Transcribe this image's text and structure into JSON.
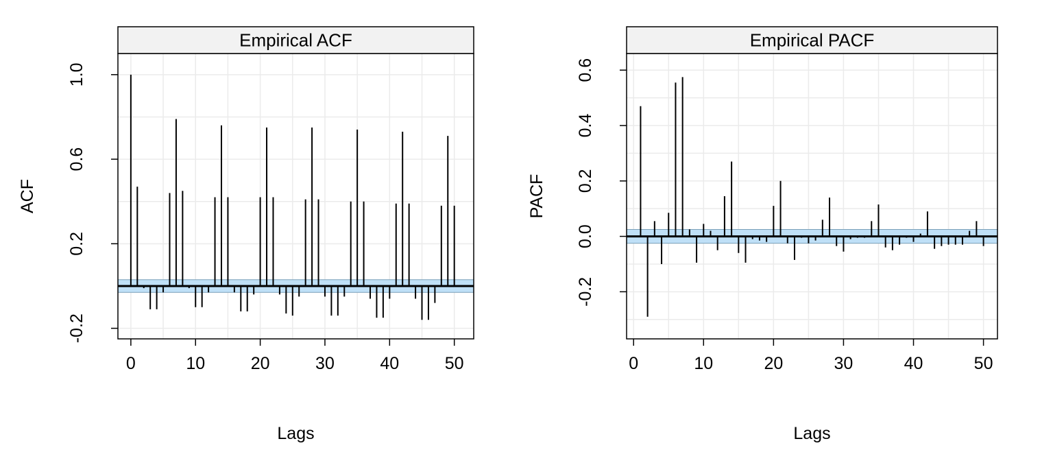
{
  "chart_data": [
    {
      "type": "bar",
      "title": "Empirical ACF",
      "xlabel": "Lags",
      "ylabel": "ACF",
      "xlim": [
        -2,
        53
      ],
      "ylim": [
        -0.25,
        1.1
      ],
      "xticks": [
        0,
        10,
        20,
        30,
        40,
        50
      ],
      "xtick_labels": [
        "0",
        "10",
        "20",
        "30",
        "40",
        "50"
      ],
      "yticks": [
        -0.2,
        0.2,
        0.6,
        1.0
      ],
      "ytick_labels": [
        "-0.2",
        "0.2",
        "0.6",
        "1.0"
      ],
      "grid": true,
      "confidence_band": [
        -0.03,
        0.03
      ],
      "x": [
        0,
        1,
        2,
        3,
        4,
        5,
        6,
        7,
        8,
        9,
        10,
        11,
        12,
        13,
        14,
        15,
        16,
        17,
        18,
        19,
        20,
        21,
        22,
        23,
        24,
        25,
        26,
        27,
        28,
        29,
        30,
        31,
        32,
        33,
        34,
        35,
        36,
        37,
        38,
        39,
        40,
        41,
        42,
        43,
        44,
        45,
        46,
        47,
        48,
        49,
        50
      ],
      "values": [
        1.0,
        0.47,
        -0.01,
        -0.11,
        -0.11,
        -0.03,
        0.44,
        0.79,
        0.45,
        -0.01,
        -0.1,
        -0.1,
        -0.03,
        0.42,
        0.76,
        0.42,
        -0.03,
        -0.12,
        -0.12,
        -0.04,
        0.42,
        0.75,
        0.42,
        -0.04,
        -0.13,
        -0.14,
        -0.05,
        0.41,
        0.75,
        0.41,
        -0.05,
        -0.14,
        -0.14,
        -0.05,
        0.4,
        0.74,
        0.4,
        -0.06,
        -0.15,
        -0.15,
        -0.06,
        0.39,
        0.73,
        0.39,
        -0.06,
        -0.16,
        -0.16,
        -0.08,
        0.38,
        0.71,
        0.38
      ]
    },
    {
      "type": "bar",
      "title": "Empirical PACF",
      "xlabel": "Lags",
      "ylabel": "PACF",
      "xlim": [
        -1,
        52
      ],
      "ylim": [
        -0.37,
        0.66
      ],
      "xticks": [
        0,
        10,
        20,
        30,
        40,
        50
      ],
      "xtick_labels": [
        "0",
        "10",
        "20",
        "30",
        "40",
        "50"
      ],
      "yticks": [
        -0.2,
        0.0,
        0.2,
        0.4,
        0.6
      ],
      "ytick_labels": [
        "-0.2",
        "0.0",
        "0.2",
        "0.4",
        "0.6"
      ],
      "grid": true,
      "confidence_band": [
        -0.025,
        0.025
      ],
      "x": [
        1,
        2,
        3,
        4,
        5,
        6,
        7,
        8,
        9,
        10,
        11,
        12,
        13,
        14,
        15,
        16,
        17,
        18,
        19,
        20,
        21,
        22,
        23,
        24,
        25,
        26,
        27,
        28,
        29,
        30,
        31,
        32,
        33,
        34,
        35,
        36,
        37,
        38,
        39,
        40,
        41,
        42,
        43,
        44,
        45,
        46,
        47,
        48,
        49,
        50
      ],
      "values": [
        0.47,
        -0.29,
        0.055,
        -0.1,
        0.085,
        0.555,
        0.575,
        0.025,
        -0.095,
        0.045,
        0.02,
        -0.05,
        0.145,
        0.27,
        -0.06,
        -0.095,
        -0.01,
        -0.015,
        -0.02,
        0.11,
        0.2,
        -0.025,
        -0.085,
        -0.005,
        -0.025,
        -0.015,
        0.06,
        0.14,
        -0.035,
        -0.055,
        -0.01,
        -0.005,
        -0.005,
        0.055,
        0.115,
        -0.04,
        -0.05,
        -0.03,
        -0.005,
        -0.02,
        0.01,
        0.09,
        -0.045,
        -0.035,
        -0.03,
        -0.03,
        -0.03,
        0.02,
        0.055,
        -0.035
      ]
    }
  ]
}
